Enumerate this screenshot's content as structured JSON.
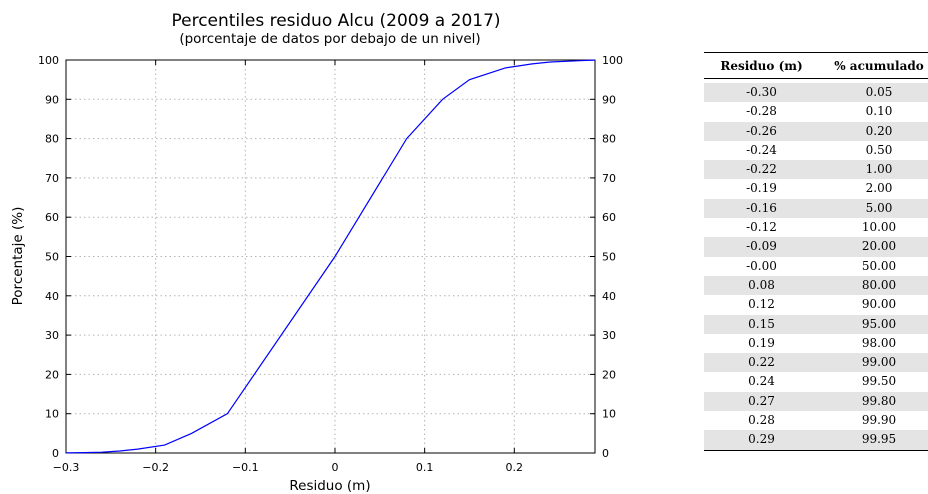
{
  "chart_data": {
    "type": "line",
    "title": "Percentiles residuo Alcu (2009 a 2017)",
    "subtitle": "(porcentaje de datos por debajo de un nivel)",
    "xlabel": "Residuo (m)",
    "ylabel": "Porcentaje (%)",
    "xlim": [
      -0.3,
      0.29
    ],
    "ylim": [
      0,
      100
    ],
    "x_ticks": [
      -0.3,
      -0.2,
      -0.1,
      0,
      0.1,
      0.2
    ],
    "x_tick_labels": [
      "−0.3",
      "−0.2",
      "−0.1",
      "0",
      "0.1",
      "0.2"
    ],
    "y_ticks": [
      0,
      10,
      20,
      30,
      40,
      50,
      60,
      70,
      80,
      90,
      100
    ],
    "grid": true,
    "line_color": "#0000ff",
    "series": [
      {
        "x": [
          -0.3,
          -0.28,
          -0.26,
          -0.24,
          -0.22,
          -0.19,
          -0.16,
          -0.12,
          -0.09,
          -0.0,
          0.08,
          0.12,
          0.15,
          0.19,
          0.22,
          0.24,
          0.27,
          0.28,
          0.29
        ],
        "y": [
          0.05,
          0.1,
          0.2,
          0.5,
          1.0,
          2.0,
          5.0,
          10.0,
          20.0,
          50.0,
          80.0,
          90.0,
          95.0,
          98.0,
          99.0,
          99.5,
          99.8,
          99.9,
          99.95
        ]
      }
    ]
  },
  "table": {
    "headers": [
      "Residuo (m)",
      "% acumulado"
    ],
    "rows": [
      [
        "-0.30",
        "0.05"
      ],
      [
        "-0.28",
        "0.10"
      ],
      [
        "-0.26",
        "0.20"
      ],
      [
        "-0.24",
        "0.50"
      ],
      [
        "-0.22",
        "1.00"
      ],
      [
        "-0.19",
        "2.00"
      ],
      [
        "-0.16",
        "5.00"
      ],
      [
        "-0.12",
        "10.00"
      ],
      [
        "-0.09",
        "20.00"
      ],
      [
        "-0.00",
        "50.00"
      ],
      [
        "0.08",
        "80.00"
      ],
      [
        "0.12",
        "90.00"
      ],
      [
        "0.15",
        "95.00"
      ],
      [
        "0.19",
        "98.00"
      ],
      [
        "0.22",
        "99.00"
      ],
      [
        "0.24",
        "99.50"
      ],
      [
        "0.27",
        "99.80"
      ],
      [
        "0.28",
        "99.90"
      ],
      [
        "0.29",
        "99.95"
      ]
    ]
  }
}
